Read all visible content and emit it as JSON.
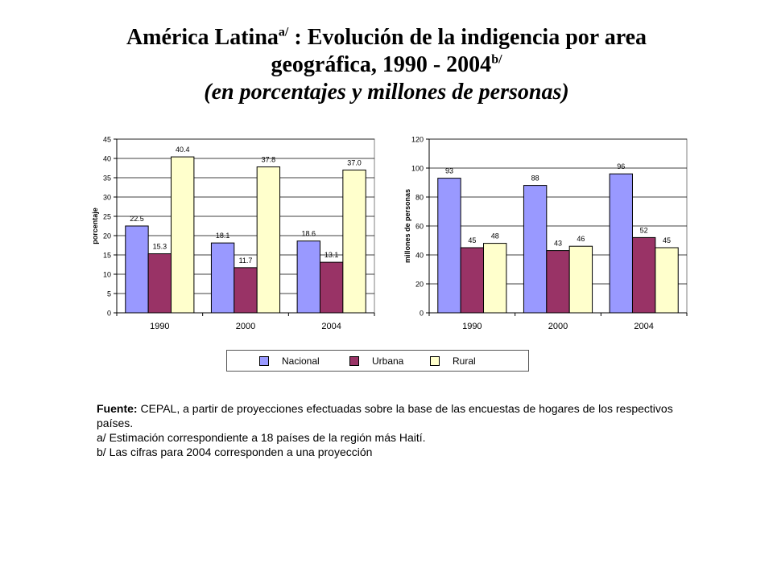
{
  "title": {
    "line1_a": "América Latina",
    "line1_sup": "a/",
    "line1_b": " : Evolución de la indigencia por area",
    "line2_a": "geográfica, 1990 - 2004",
    "line2_sup": "b/",
    "line3": "(en porcentajes y millones de personas)"
  },
  "legend": {
    "items": [
      {
        "label": "Nacional",
        "color": "#9999ff"
      },
      {
        "label": "Urbana",
        "color": "#993366"
      },
      {
        "label": "Rural",
        "color": "#ffffcc"
      }
    ]
  },
  "notes": {
    "source_label": "Fuente:",
    "source_text": " CEPAL, a partir de proyecciones efectuadas sobre la base de las encuestas de hogares de los respectivos países.",
    "note_a": "a/  Estimación correspondiente a 18 países de la región más Haití.",
    "note_b": "b/  Las cifras para 2004 corresponden a una proyección"
  },
  "chart_data": [
    {
      "type": "bar",
      "categories": [
        "1990",
        "2000",
        "2004"
      ],
      "series": [
        {
          "name": "Nacional",
          "values": [
            22.5,
            18.1,
            18.6
          ],
          "color": "#9999ff",
          "labels": [
            "22.5",
            "18.1",
            "18.6"
          ]
        },
        {
          "name": "Urbana",
          "values": [
            15.3,
            11.7,
            13.1
          ],
          "color": "#993366",
          "labels": [
            "15.3",
            "11.7",
            "13.1"
          ]
        },
        {
          "name": "Rural",
          "values": [
            40.4,
            37.8,
            37.0
          ],
          "color": "#ffffcc",
          "labels": [
            "40.4",
            "37.8",
            "37.0"
          ]
        }
      ],
      "ylabel": "porcentaje",
      "ylim": [
        0,
        45
      ],
      "yticks": [
        0,
        5,
        10,
        15,
        20,
        25,
        30,
        35,
        40,
        45
      ],
      "grid": true,
      "legend": "bottom"
    },
    {
      "type": "bar",
      "categories": [
        "1990",
        "2000",
        "2004"
      ],
      "series": [
        {
          "name": "Nacional",
          "values": [
            93,
            88,
            96
          ],
          "color": "#9999ff",
          "labels": [
            "93",
            "88",
            "96"
          ]
        },
        {
          "name": "Urbana",
          "values": [
            45,
            43,
            52
          ],
          "color": "#993366",
          "labels": [
            "45",
            "43",
            "52"
          ]
        },
        {
          "name": "Rural",
          "values": [
            48,
            46,
            45
          ],
          "color": "#ffffcc",
          "labels": [
            "48",
            "46",
            "45"
          ]
        }
      ],
      "ylabel": "millones de personas",
      "ylim": [
        0,
        120
      ],
      "yticks": [
        0,
        20,
        40,
        60,
        80,
        100,
        120
      ],
      "grid": true,
      "legend": "bottom"
    }
  ]
}
